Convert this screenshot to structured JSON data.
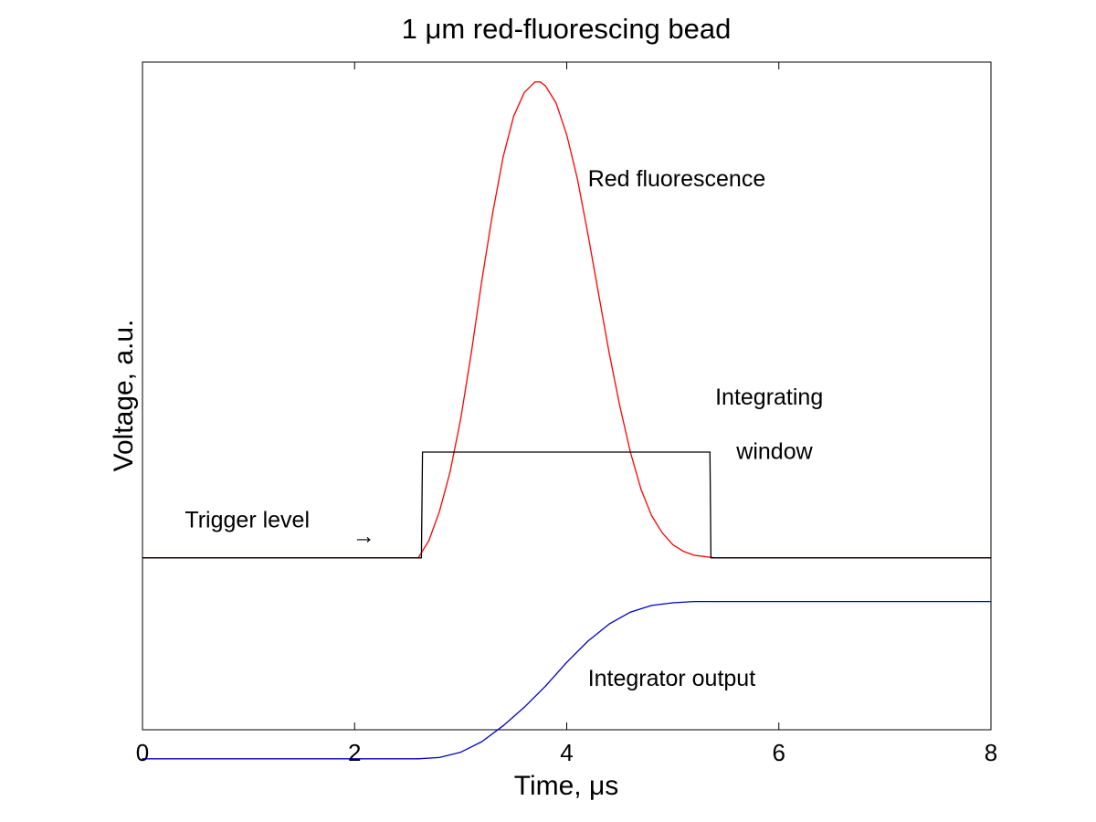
{
  "chart_data": {
    "type": "line",
    "title": "1 μm red-fluorescing bead",
    "xlabel": "Time, μs",
    "ylabel": "Voltage, a.u.",
    "xlim": [
      0,
      8
    ],
    "ylim": [
      -1.3,
      3.75
    ],
    "x_ticks": [
      0,
      2,
      4,
      6,
      8
    ],
    "x_tick_labels": [
      "0",
      "2",
      "4",
      "6",
      "8"
    ],
    "y_ticks": [],
    "grid": false,
    "series": [
      {
        "name": "Red fluorescence",
        "color": "#ff0000",
        "x": [
          0,
          2.6,
          2.7,
          2.8,
          2.9,
          3.0,
          3.1,
          3.2,
          3.3,
          3.4,
          3.5,
          3.6,
          3.7,
          3.75,
          3.8,
          3.9,
          4.0,
          4.1,
          4.2,
          4.3,
          4.4,
          4.5,
          4.6,
          4.7,
          4.8,
          4.9,
          5.0,
          5.1,
          5.2,
          5.3,
          5.4,
          5.5,
          8.0
        ],
        "y": [
          0.0,
          0.0,
          0.13,
          0.35,
          0.65,
          1.05,
          1.55,
          2.1,
          2.6,
          3.03,
          3.34,
          3.52,
          3.6,
          3.6,
          3.57,
          3.44,
          3.2,
          2.87,
          2.45,
          2.0,
          1.55,
          1.15,
          0.8,
          0.52,
          0.32,
          0.19,
          0.1,
          0.05,
          0.02,
          0.01,
          0.0,
          0.0,
          0.0
        ]
      },
      {
        "name": "Integrating window",
        "color": "#000000",
        "x": [
          0,
          2.63,
          2.64,
          5.35,
          5.36,
          8.0
        ],
        "y": [
          0.0,
          0.0,
          0.8,
          0.8,
          0.0,
          0.0
        ]
      },
      {
        "name": "Integrator output",
        "color": "#0000cc",
        "x": [
          0,
          2.6,
          2.8,
          3.0,
          3.2,
          3.4,
          3.6,
          3.8,
          4.0,
          4.2,
          4.4,
          4.6,
          4.8,
          5.0,
          5.2,
          5.4,
          8.0
        ],
        "y": [
          -1.52,
          -1.52,
          -1.51,
          -1.47,
          -1.39,
          -1.27,
          -1.13,
          -0.97,
          -0.79,
          -0.63,
          -0.5,
          -0.41,
          -0.36,
          -0.34,
          -0.33,
          -0.33,
          -0.33
        ]
      }
    ],
    "annotations": [
      {
        "text": "Red fluorescence",
        "x": 4.2,
        "y": 2.81,
        "anchor": "start"
      },
      {
        "text": "Integrating",
        "x": 5.4,
        "y": 1.16,
        "anchor": "start"
      },
      {
        "text": "window",
        "x": 5.6,
        "y": 0.75,
        "anchor": "start"
      },
      {
        "text": "Trigger level",
        "x": 0.4,
        "y": 0.23,
        "anchor": "start"
      },
      {
        "text": "→",
        "x": 1.98,
        "y": 0.11,
        "anchor": "start"
      },
      {
        "text": "Integrator output",
        "x": 4.2,
        "y": -0.97,
        "anchor": "start"
      }
    ]
  }
}
